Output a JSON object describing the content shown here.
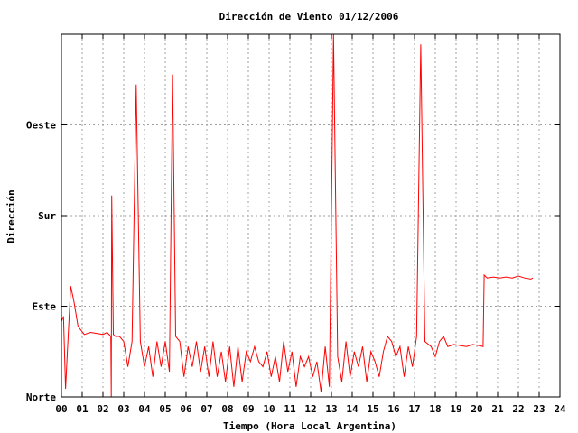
{
  "chart_data": {
    "type": "line",
    "title": "Dirección de Viento 01/12/2006",
    "xlabel": "Tiempo (Hora Local Argentina)",
    "ylabel": "Dirección",
    "x_ticks": [
      "00",
      "01",
      "02",
      "03",
      "04",
      "05",
      "06",
      "07",
      "08",
      "09",
      "10",
      "11",
      "12",
      "13",
      "14",
      "15",
      "16",
      "17",
      "18",
      "19",
      "20",
      "21",
      "22",
      "23",
      "24"
    ],
    "xlim": [
      0,
      24
    ],
    "ylim": [
      0,
      360
    ],
    "y_ticks": [
      {
        "value": 0,
        "label": "Norte"
      },
      {
        "value": 90,
        "label": "Este"
      },
      {
        "value": 180,
        "label": "Sur"
      },
      {
        "value": 270,
        "label": "Oeste"
      }
    ],
    "grid": true,
    "series": [
      {
        "color": "#ff0000",
        "x": [
          0.0,
          0.1,
          0.2,
          0.3,
          0.45,
          0.6,
          0.8,
          1.1,
          1.4,
          1.7,
          2.0,
          2.2,
          2.38,
          2.4,
          2.42,
          2.5,
          2.6,
          2.8,
          3.0,
          3.2,
          3.4,
          3.6,
          3.8,
          4.0,
          4.2,
          4.4,
          4.6,
          4.8,
          5.0,
          5.2,
          5.35,
          5.5,
          5.7,
          5.9,
          6.1,
          6.3,
          6.5,
          6.7,
          6.9,
          7.1,
          7.3,
          7.5,
          7.7,
          7.9,
          8.1,
          8.3,
          8.5,
          8.7,
          8.9,
          9.1,
          9.3,
          9.5,
          9.7,
          9.9,
          10.1,
          10.3,
          10.5,
          10.7,
          10.9,
          11.1,
          11.3,
          11.5,
          11.7,
          11.9,
          12.1,
          12.3,
          12.5,
          12.7,
          12.9,
          13.1,
          13.3,
          13.5,
          13.7,
          13.9,
          14.1,
          14.3,
          14.5,
          14.7,
          14.9,
          15.1,
          15.3,
          15.5,
          15.7,
          15.9,
          16.1,
          16.3,
          16.5,
          16.7,
          16.9,
          17.1,
          17.3,
          17.5,
          17.8,
          18.0,
          18.2,
          18.4,
          18.6,
          18.9,
          19.2,
          19.5,
          19.8,
          20.1,
          20.3,
          20.35,
          20.5,
          20.8,
          21.1,
          21.4,
          21.7,
          22.0,
          22.3,
          22.6,
          22.7
        ],
        "y": [
          75,
          80,
          8,
          50,
          110,
          95,
          70,
          62,
          64,
          63,
          62,
          64,
          60,
          0,
          200,
          62,
          60,
          60,
          55,
          30,
          55,
          310,
          55,
          30,
          50,
          20,
          55,
          30,
          55,
          25,
          320,
          60,
          55,
          20,
          50,
          30,
          55,
          25,
          50,
          20,
          55,
          20,
          45,
          15,
          50,
          10,
          50,
          15,
          45,
          35,
          50,
          35,
          30,
          45,
          20,
          40,
          15,
          55,
          25,
          45,
          10,
          40,
          30,
          40,
          20,
          35,
          5,
          50,
          10,
          360,
          40,
          15,
          55,
          20,
          45,
          30,
          50,
          15,
          45,
          35,
          20,
          45,
          60,
          55,
          40,
          50,
          20,
          50,
          30,
          60,
          350,
          55,
          50,
          40,
          55,
          60,
          50,
          52,
          51,
          50,
          52,
          51,
          50,
          121,
          118,
          119,
          118,
          119,
          118,
          120,
          118,
          117,
          118
        ]
      }
    ]
  }
}
